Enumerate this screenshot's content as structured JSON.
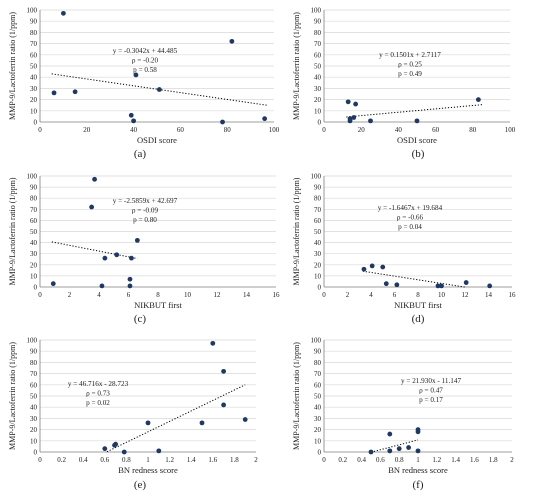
{
  "chart_data": [
    {
      "type": "scatter",
      "panel_label": "(a)",
      "xlabel": "OSDI score",
      "ylabel": "MMP-9/Lactoferrin ratio (1/ppm)",
      "xlim": [
        0,
        100
      ],
      "ylim": [
        0,
        100
      ],
      "xticks": [
        "0",
        "20",
        "40",
        "60",
        "80",
        "100"
      ],
      "yticks": [
        "0",
        "10",
        "20",
        "30",
        "40",
        "50",
        "60",
        "70",
        "80",
        "90",
        "100"
      ],
      "points": [
        [
          6,
          26
        ],
        [
          10,
          97
        ],
        [
          15,
          27
        ],
        [
          39,
          6
        ],
        [
          40,
          1
        ],
        [
          41,
          42
        ],
        [
          51,
          29
        ],
        [
          78,
          0
        ],
        [
          82,
          72
        ],
        [
          96,
          3
        ]
      ],
      "trendline": {
        "slope": -0.3042,
        "intercept": 44.485,
        "x_range": [
          5,
          97
        ]
      },
      "annotation": [
        "y = -0.3042x + 44.485",
        "ρ = -0.20",
        "p = 0.58"
      ]
    },
    {
      "type": "scatter",
      "panel_label": "(b)",
      "xlabel": "OSDI score",
      "ylabel": "MMP-9/Lactoferrin ratio (1/ppm)",
      "xlim": [
        0,
        100
      ],
      "ylim": [
        0,
        100
      ],
      "xticks": [
        "0",
        "20",
        "40",
        "60",
        "80",
        "100"
      ],
      "yticks": [
        "0",
        "10",
        "20",
        "30",
        "40",
        "50",
        "60",
        "70",
        "80",
        "90",
        "100"
      ],
      "points": [
        [
          13,
          18
        ],
        [
          14,
          3
        ],
        [
          14,
          1
        ],
        [
          16,
          4
        ],
        [
          17,
          16
        ],
        [
          25,
          1
        ],
        [
          50,
          1
        ],
        [
          83,
          20
        ]
      ],
      "trendline": {
        "slope": 0.1501,
        "intercept": 2.7117,
        "x_range": [
          12,
          85
        ]
      },
      "annotation": [
        "y = 0.1501x + 2.7117",
        "ρ = 0.25",
        "p = 0.49"
      ]
    },
    {
      "type": "scatter",
      "panel_label": "(c)",
      "xlabel": "NIKBUT first",
      "ylabel": "MMP-9/Lactoferrin ratio (1/ppm)",
      "xlim": [
        0,
        16
      ],
      "ylim": [
        0,
        100
      ],
      "xticks": [
        "0",
        "2",
        "4",
        "6",
        "8",
        "10",
        "12",
        "14",
        "16"
      ],
      "yticks": [
        "0",
        "10",
        "20",
        "30",
        "40",
        "50",
        "60",
        "70",
        "80",
        "90",
        "100"
      ],
      "points": [
        [
          0.9,
          3
        ],
        [
          3.5,
          72
        ],
        [
          3.7,
          97
        ],
        [
          4.2,
          1
        ],
        [
          4.4,
          26
        ],
        [
          5.2,
          29
        ],
        [
          6.1,
          7
        ],
        [
          6.1,
          1
        ],
        [
          6.2,
          26
        ],
        [
          6.6,
          42
        ]
      ],
      "trendline": {
        "slope": -2.5859,
        "intercept": 42.697,
        "x_range": [
          0.8,
          6.6
        ]
      },
      "annotation": [
        "y = -2.5859x + 42.697",
        "ρ = -0.09",
        "p = 0.80"
      ]
    },
    {
      "type": "scatter",
      "panel_label": "(d)",
      "xlabel": "NIKBUT first",
      "ylabel": "MMP-9/Lactoferrin ratio (1/ppm)",
      "xlim": [
        0,
        16
      ],
      "ylim": [
        0,
        100
      ],
      "xticks": [
        "0",
        "2",
        "4",
        "6",
        "8",
        "10",
        "12",
        "14",
        "16"
      ],
      "yticks": [
        "0",
        "10",
        "20",
        "30",
        "40",
        "50",
        "60",
        "70",
        "80",
        "90",
        "100"
      ],
      "points": [
        [
          3.4,
          16
        ],
        [
          4.1,
          19
        ],
        [
          5.0,
          18
        ],
        [
          5.3,
          3
        ],
        [
          6.2,
          2
        ],
        [
          9.7,
          1
        ],
        [
          10.0,
          1
        ],
        [
          12.1,
          4
        ],
        [
          14.1,
          1
        ]
      ],
      "trendline": {
        "slope": -1.6467,
        "intercept": 19.684,
        "x_range": [
          3.3,
          12.0
        ]
      },
      "annotation": [
        "y = -1.6467x + 19.684",
        "ρ = -0.66",
        "p = 0.04"
      ]
    },
    {
      "type": "scatter",
      "panel_label": "(e)",
      "xlabel": "BN redness score",
      "ylabel": "MMP-9/Lactoferrin ratio (1/ppm)",
      "xlim": [
        0,
        2
      ],
      "ylim": [
        0,
        100
      ],
      "xticks": [
        "0",
        "0.2",
        "0.4",
        "0.6",
        "0.8",
        "1",
        "1.2",
        "1.4",
        "1.6",
        "1.8",
        "2"
      ],
      "yticks": [
        "0",
        "10",
        "20",
        "30",
        "40",
        "50",
        "60",
        "70",
        "80",
        "90",
        "100"
      ],
      "points": [
        [
          0.6,
          3
        ],
        [
          0.69,
          6
        ],
        [
          0.7,
          7
        ],
        [
          0.78,
          0
        ],
        [
          1.0,
          26
        ],
        [
          1.1,
          1
        ],
        [
          1.5,
          26
        ],
        [
          1.6,
          97
        ],
        [
          1.7,
          72
        ],
        [
          1.7,
          42
        ],
        [
          1.9,
          29
        ]
      ],
      "trendline": {
        "slope": 46.716,
        "intercept": -28.723,
        "x_range": [
          0.62,
          1.9
        ]
      },
      "annotation": [
        "y = 46.716x - 28.723",
        "ρ = 0.73",
        "p = 0.02"
      ]
    },
    {
      "type": "scatter",
      "panel_label": "(f)",
      "xlabel": "BN redness score",
      "ylabel": "MMP-9/Lactoferrin ratio (1/ppm)",
      "xlim": [
        0,
        2
      ],
      "ylim": [
        0,
        100
      ],
      "xticks": [
        "0",
        "0.2",
        "0.4",
        "0.6",
        "0.8",
        "1",
        "1.2",
        "1.4",
        "1.6",
        "1.8",
        "2"
      ],
      "yticks": [
        "0",
        "10",
        "20",
        "30",
        "40",
        "50",
        "60",
        "70",
        "80",
        "90",
        "100"
      ],
      "points": [
        [
          0.5,
          0
        ],
        [
          0.7,
          16
        ],
        [
          0.7,
          1
        ],
        [
          0.8,
          3
        ],
        [
          0.9,
          4
        ],
        [
          1.0,
          20
        ],
        [
          1.0,
          18
        ],
        [
          1.0,
          1
        ]
      ],
      "trendline": {
        "slope": 21.93,
        "intercept": -11.147,
        "x_range": [
          0.5,
          1.0
        ]
      },
      "annotation": [
        "y = 21.930x - 11.147",
        "ρ = 0.47",
        "p = 0.17"
      ]
    }
  ]
}
